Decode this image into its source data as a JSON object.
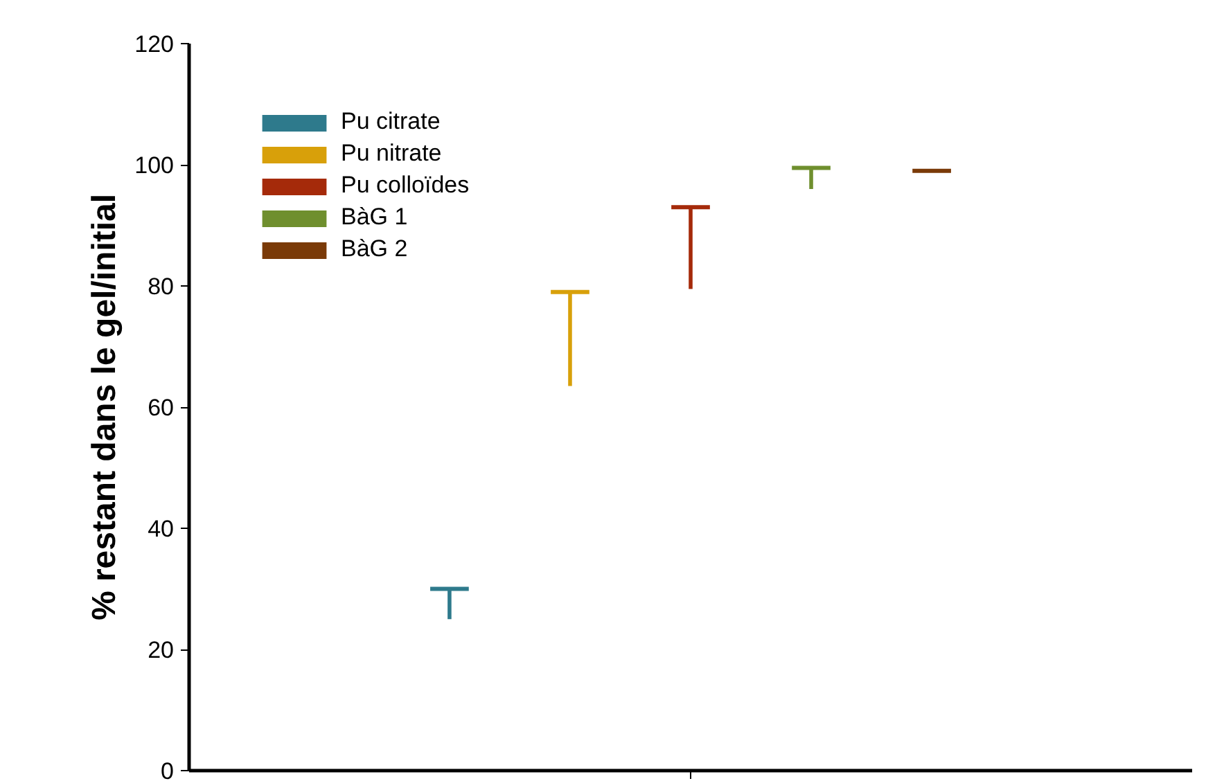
{
  "chart_data": {
    "type": "bar",
    "ylabel": "% restant dans le gel/initial",
    "categories": [
      null
    ],
    "ylim": [
      0,
      120
    ],
    "yticks": [
      0,
      20,
      40,
      60,
      80,
      100,
      120
    ],
    "grid": false,
    "legend": "top left",
    "series": [
      {
        "name": "Pu citrate",
        "color": "#2e7a8c",
        "base": [
          25
        ],
        "values": [
          5
        ],
        "errors": [
          0
        ]
      },
      {
        "name": "Pu nitrate",
        "color": "#d8a00a",
        "base": [
          63.5
        ],
        "values": [
          15.5
        ],
        "errors": [
          0
        ]
      },
      {
        "name": "Pu colloïdes",
        "color": "#a52a0a",
        "base": [
          79.5
        ],
        "values": [
          13.5
        ],
        "errors": [
          0
        ]
      },
      {
        "name": "BàG 1",
        "color": "#6f8f2e",
        "base": [
          96
        ],
        "values": [
          3.5
        ],
        "errors": [
          0
        ]
      },
      {
        "name": "BàG 2",
        "color": "#7a3a08",
        "base": [
          99
        ],
        "values": [
          0
        ],
        "errors": [
          0
        ]
      }
    ]
  }
}
